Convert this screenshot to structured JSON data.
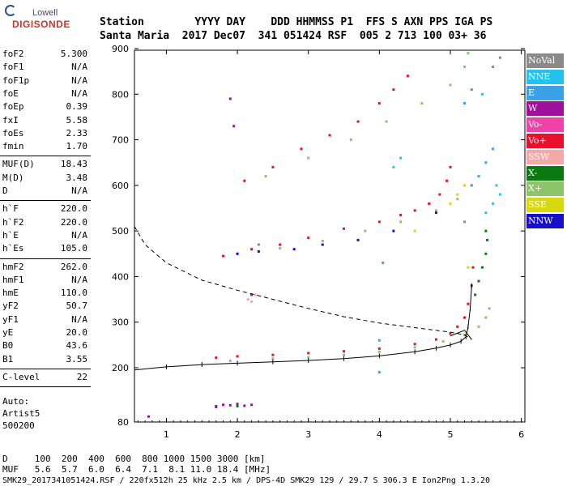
{
  "logo": {
    "line1": "Lowell",
    "line2": "DIGISONDE"
  },
  "header": {
    "row1": "Station        YYYY DAY    DDD HHMMSS P1  FFS S AXN PPS IGA PS",
    "row2": "Santa Maria  2017 Dec07  341 051424 RSF  005 2 713 100 03+ 36"
  },
  "params": {
    "group1": [
      {
        "k": "foF2",
        "v": "5.300"
      },
      {
        "k": "foF1",
        "v": "N/A"
      },
      {
        "k": "foF1p",
        "v": "N/A"
      },
      {
        "k": "foE",
        "v": "N/A"
      },
      {
        "k": "foEp",
        "v": "0.39"
      },
      {
        "k": "fxI",
        "v": "5.58"
      },
      {
        "k": "foEs",
        "v": "2.33"
      },
      {
        "k": "fmin",
        "v": "1.70"
      }
    ],
    "group2": [
      {
        "k": "MUF(D)",
        "v": "18.43"
      },
      {
        "k": "M(D)",
        "v": "3.48"
      },
      {
        "k": "D",
        "v": "N/A"
      }
    ],
    "group3": [
      {
        "k": "h`F",
        "v": "220.0"
      },
      {
        "k": "h`F2",
        "v": "220.0"
      },
      {
        "k": "h`E",
        "v": "N/A"
      },
      {
        "k": "h`Es",
        "v": "105.0"
      }
    ],
    "group4": [
      {
        "k": "hmF2",
        "v": "262.0"
      },
      {
        "k": "hmF1",
        "v": "N/A"
      },
      {
        "k": "hmE",
        "v": "110.0"
      },
      {
        "k": "yF2",
        "v": "50.7"
      },
      {
        "k": "yF1",
        "v": "N/A"
      },
      {
        "k": "yE",
        "v": "20.0"
      },
      {
        "k": "B0",
        "v": "43.6"
      },
      {
        "k": "B1",
        "v": "3.55"
      }
    ],
    "group5": [
      {
        "k": "C-level",
        "v": "22"
      }
    ],
    "auto": [
      "Auto:",
      "Artist5",
      "500200"
    ]
  },
  "legend": [
    {
      "label": "NoVal",
      "color": "#8a8a8a"
    },
    {
      "label": "NNE",
      "color": "#22c4ee"
    },
    {
      "label": "E",
      "color": "#3aa0e8"
    },
    {
      "label": "W",
      "color": "#a0109c"
    },
    {
      "label": "Vo-",
      "color": "#ee44aa"
    },
    {
      "label": "Vo+",
      "color": "#e8102a"
    },
    {
      "label": "SSW",
      "color": "#f4a8a8"
    },
    {
      "label": "X-",
      "color": "#0a7a10"
    },
    {
      "label": "X+",
      "color": "#8cc46a"
    },
    {
      "label": "SSE",
      "color": "#d8d80e"
    },
    {
      "label": "NNW",
      "color": "#1810c8"
    }
  ],
  "chart_data": {
    "type": "scatter",
    "x_ticks": [
      "1",
      "2",
      "3",
      "4",
      "5",
      "6"
    ],
    "y_ticks": [
      "80",
      "200",
      "300",
      "400",
      "500",
      "600",
      "700",
      "800",
      "900"
    ],
    "xlim": [
      0.55,
      6.05
    ],
    "series": [
      {
        "name": "Vo+",
        "color": "#e8102a",
        "points": [
          [
            1.7,
            222
          ],
          [
            2.0,
            225
          ],
          [
            2.5,
            228
          ],
          [
            3.0,
            232
          ],
          [
            3.5,
            236
          ],
          [
            4.0,
            242
          ],
          [
            4.5,
            252
          ],
          [
            4.8,
            262
          ],
          [
            5.0,
            275
          ],
          [
            5.1,
            290
          ],
          [
            5.2,
            310
          ],
          [
            5.25,
            340
          ],
          [
            5.3,
            380
          ],
          [
            5.32,
            420
          ],
          [
            1.8,
            445
          ],
          [
            2.2,
            460
          ],
          [
            2.6,
            470
          ],
          [
            3.0,
            485
          ],
          [
            3.5,
            505
          ],
          [
            4.0,
            520
          ],
          [
            4.3,
            535
          ],
          [
            4.5,
            545
          ],
          [
            4.7,
            560
          ],
          [
            4.85,
            580
          ],
          [
            4.95,
            610
          ],
          [
            5.0,
            640
          ],
          [
            2.1,
            610
          ],
          [
            2.5,
            640
          ],
          [
            2.9,
            680
          ],
          [
            3.3,
            710
          ],
          [
            3.7,
            740
          ],
          [
            4.0,
            780
          ],
          [
            4.2,
            810
          ],
          [
            4.4,
            840
          ]
        ]
      },
      {
        "name": "X+",
        "color": "#8cc46a",
        "points": [
          [
            1.9,
            215
          ],
          [
            2.5,
            220
          ],
          [
            3.0,
            223
          ],
          [
            3.5,
            228
          ],
          [
            4.0,
            235
          ],
          [
            4.5,
            245
          ],
          [
            4.9,
            258
          ],
          [
            5.2,
            272
          ],
          [
            5.4,
            290
          ],
          [
            5.5,
            310
          ],
          [
            5.55,
            330
          ],
          [
            2.0,
            450
          ],
          [
            2.6,
            462
          ],
          [
            3.2,
            478
          ],
          [
            3.8,
            500
          ],
          [
            4.3,
            520
          ],
          [
            4.8,
            545
          ],
          [
            5.1,
            570
          ],
          [
            5.3,
            600
          ],
          [
            2.4,
            620
          ],
          [
            3.0,
            660
          ],
          [
            3.6,
            700
          ],
          [
            4.1,
            740
          ],
          [
            4.6,
            780
          ],
          [
            5.0,
            820
          ],
          [
            5.2,
            860
          ],
          [
            5.25,
            890
          ]
        ]
      },
      {
        "name": "X-",
        "color": "#0a7a10",
        "points": [
          [
            5.35,
            360
          ],
          [
            5.4,
            390
          ],
          [
            5.45,
            420
          ],
          [
            5.5,
            450
          ],
          [
            5.52,
            480
          ],
          [
            5.5,
            500
          ],
          [
            1.7,
            113
          ],
          [
            2.0,
            115
          ]
        ]
      },
      {
        "name": "E",
        "color": "#3aa0e8",
        "points": [
          [
            4.0,
            190
          ],
          [
            4.0,
            260
          ],
          [
            4.05,
            430
          ],
          [
            5.3,
            600
          ],
          [
            5.4,
            620
          ],
          [
            5.5,
            650
          ],
          [
            5.6,
            680
          ],
          [
            5.2,
            780
          ],
          [
            5.3,
            810
          ]
        ]
      },
      {
        "name": "W",
        "color": "#a0109c",
        "points": [
          [
            1.7,
            115
          ],
          [
            1.8,
            118
          ],
          [
            1.9,
            117
          ],
          [
            2.0,
            120
          ],
          [
            2.1,
            116
          ],
          [
            2.2,
            118
          ],
          [
            0.75,
            92
          ],
          [
            1.9,
            790
          ],
          [
            1.95,
            730
          ],
          [
            2.2,
            360
          ]
        ]
      },
      {
        "name": "NNE",
        "color": "#22c4ee",
        "points": [
          [
            5.5,
            540
          ],
          [
            5.6,
            560
          ],
          [
            5.7,
            580
          ],
          [
            5.65,
            600
          ],
          [
            4.2,
            640
          ],
          [
            4.3,
            660
          ],
          [
            5.45,
            800
          ]
        ]
      },
      {
        "name": "NNW",
        "color": "#1810c8",
        "points": [
          [
            2.0,
            450
          ],
          [
            2.3,
            455
          ],
          [
            2.8,
            460
          ],
          [
            3.2,
            470
          ],
          [
            3.7,
            480
          ],
          [
            4.2,
            500
          ],
          [
            4.8,
            540
          ]
        ]
      },
      {
        "name": "SSE",
        "color": "#d8d80e",
        "points": [
          [
            5.0,
            560
          ],
          [
            5.1,
            580
          ],
          [
            5.2,
            600
          ],
          [
            4.5,
            500
          ],
          [
            5.25,
            420
          ]
        ]
      },
      {
        "name": "SSW",
        "color": "#f4a8a8",
        "points": [
          [
            2.2,
            345
          ],
          [
            2.25,
            360
          ],
          [
            2.15,
            350
          ]
        ]
      },
      {
        "name": "NoVal",
        "color": "#8a8a8a",
        "points": [
          [
            5.6,
            860
          ],
          [
            5.7,
            880
          ],
          [
            5.2,
            520
          ],
          [
            2.3,
            470
          ]
        ]
      }
    ],
    "profile": {
      "type": "line",
      "points": [
        [
          0.55,
          510
        ],
        [
          0.7,
          470
        ],
        [
          1.0,
          430
        ],
        [
          1.5,
          392
        ],
        [
          2.0,
          370
        ],
        [
          2.5,
          350
        ],
        [
          3.0,
          330
        ],
        [
          3.5,
          312
        ],
        [
          4.0,
          298
        ],
        [
          4.5,
          288
        ],
        [
          5.0,
          278
        ],
        [
          5.2,
          272
        ],
        [
          5.3,
          262
        ]
      ]
    },
    "trace": {
      "type": "line",
      "points": [
        [
          0.55,
          195
        ],
        [
          1.0,
          202
        ],
        [
          1.5,
          207
        ],
        [
          2.0,
          210
        ],
        [
          2.5,
          213
        ],
        [
          3.0,
          216
        ],
        [
          3.5,
          220
        ],
        [
          4.0,
          226
        ],
        [
          4.5,
          235
        ],
        [
          4.8,
          243
        ],
        [
          5.0,
          250
        ],
        [
          5.15,
          258
        ],
        [
          5.22,
          268
        ],
        [
          5.25,
          290
        ],
        [
          5.28,
          330
        ],
        [
          5.3,
          380
        ]
      ]
    },
    "upper_trace": {
      "type": "line",
      "points": [
        [
          5.0,
          270
        ],
        [
          5.2,
          282
        ],
        [
          5.3,
          262
        ]
      ]
    }
  },
  "footer": {
    "distance_row": "D     100  200  400  600  800 1000 1500 3000 [km]",
    "muf_row": "MUF   5.6  5.7  6.0  6.4  7.1  8.1 11.0 18.4 [MHz]",
    "info_row": "SMK29_2017341051424.RSF / 220fx512h 25 kHz 2.5 km / DPS-4D SMK29 129 / 29.7 S 306.3 E Ion2Png 1.3.20"
  }
}
